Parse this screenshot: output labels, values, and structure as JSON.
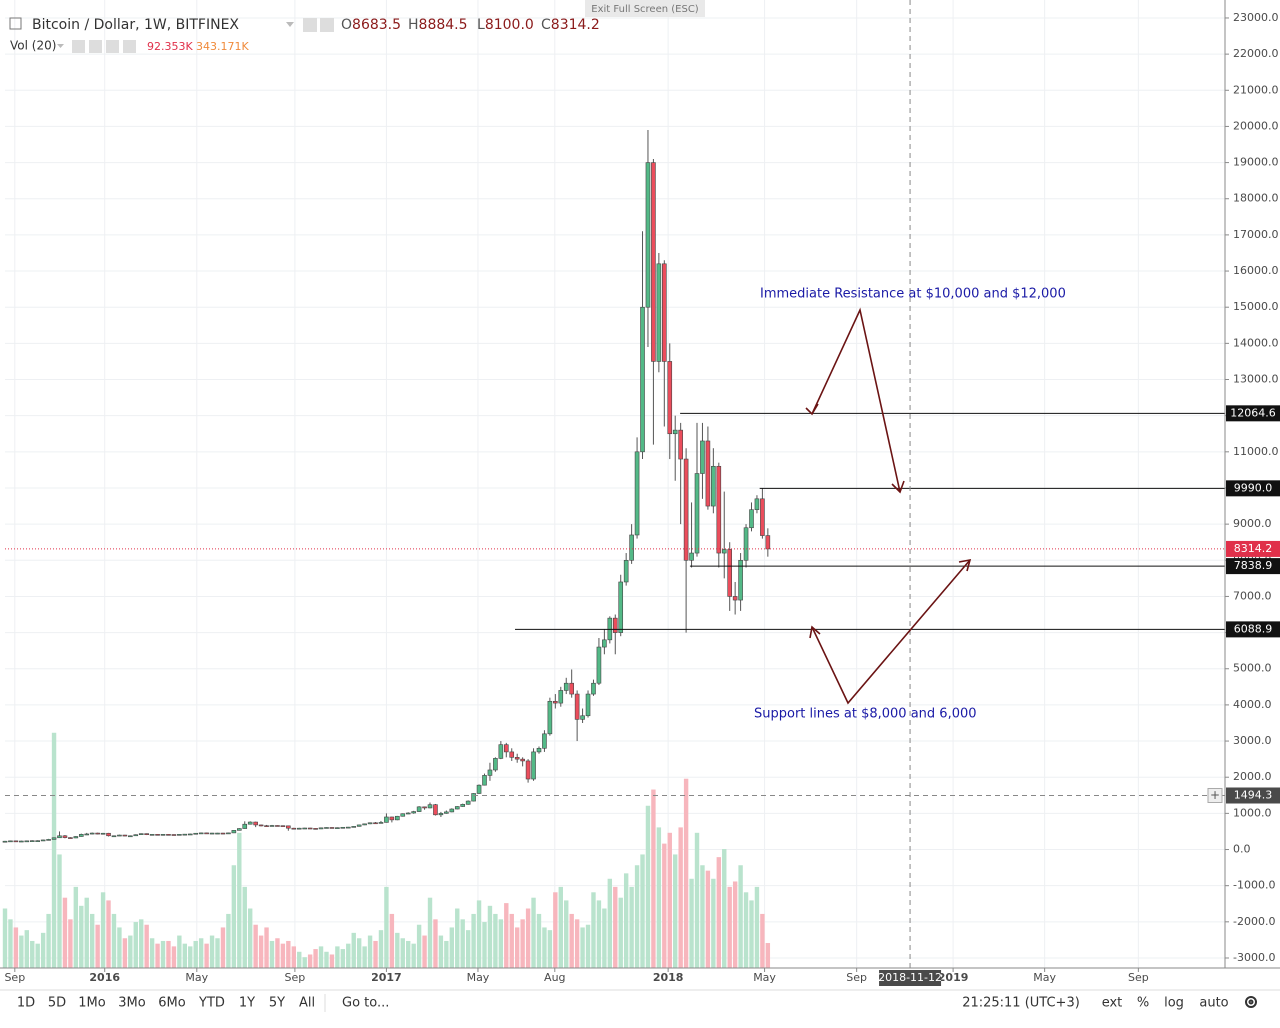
{
  "header": {
    "symbol": "Bitcoin / Dollar, 1W, BITFINEX",
    "ohlc": [
      {
        "letter": "O",
        "label": "8683.5"
      },
      {
        "letter": "H",
        "label": "8884.5"
      },
      {
        "letter": "L",
        "label": "8100.0"
      },
      {
        "letter": "C",
        "label": "8314.2"
      }
    ],
    "volume_indicator": "Vol (20)",
    "volume_ma_label": "343.171K",
    "exit_fullscreen": "Exit Full Screen (ESC)"
  },
  "chart_data": {
    "type": "candlestick",
    "open": [
      225,
      230,
      240,
      230,
      235,
      240,
      245,
      245,
      265,
      280,
      325,
      380,
      330,
      320,
      360,
      420,
      430,
      455,
      430,
      450,
      380,
      380,
      400,
      375,
      380,
      410,
      440,
      410,
      420,
      415,
      420,
      415,
      410,
      420,
      425,
      430,
      450,
      460,
      445,
      455,
      455,
      450,
      460,
      530,
      580,
      700,
      760,
      680,
      660,
      650,
      665,
      660,
      655,
      590,
      575,
      590,
      595,
      585,
      570,
      600,
      610,
      605,
      605,
      615,
      620,
      640,
      680,
      710,
      740,
      730,
      750,
      900,
      820,
      920,
      990,
      1010,
      1050,
      1180,
      1150,
      1240,
      960,
      1000,
      1040,
      1120,
      1190,
      1250,
      1340,
      1550,
      1780,
      2050,
      2200,
      2520,
      2900,
      2700,
      2550,
      2500,
      2450,
      1950,
      2700,
      2800,
      3200,
      4100,
      4050,
      4400,
      4600,
      4300,
      3600,
      3700,
      4300,
      4600,
      5600,
      5800,
      6400,
      6000,
      7400,
      8000,
      8700,
      11000,
      15000,
      19000,
      13500,
      16200,
      13500,
      11500,
      11600,
      10800,
      8000,
      8200,
      10400,
      11300,
      9500,
      10600,
      8200,
      8300,
      7000,
      6900,
      8000,
      8900,
      9400,
      9700,
      8683.5
    ],
    "high": [
      240,
      250,
      245,
      245,
      250,
      255,
      255,
      275,
      295,
      335,
      500,
      400,
      340,
      370,
      440,
      460,
      470,
      465,
      460,
      460,
      390,
      410,
      405,
      390,
      420,
      445,
      445,
      425,
      425,
      425,
      425,
      420,
      425,
      430,
      440,
      455,
      470,
      465,
      460,
      460,
      460,
      465,
      540,
      590,
      780,
      780,
      770,
      690,
      680,
      680,
      670,
      665,
      660,
      600,
      600,
      600,
      600,
      590,
      610,
      615,
      615,
      612,
      620,
      625,
      645,
      690,
      720,
      750,
      760,
      790,
      1000,
      910,
      930,
      1000,
      1030,
      1070,
      1200,
      1190,
      1300,
      1260,
      1040,
      1080,
      1140,
      1200,
      1270,
      1360,
      1560,
      1800,
      2100,
      2400,
      2550,
      3000,
      2950,
      2800,
      2650,
      2550,
      2500,
      2800,
      2850,
      3300,
      4200,
      4300,
      4500,
      4750,
      4980,
      4400,
      3900,
      4400,
      4700,
      5850,
      6100,
      6450,
      6500,
      7600,
      8200,
      9000,
      11400,
      17100,
      19900,
      19100,
      16500,
      16300,
      14000,
      12000,
      11800,
      11100,
      9600,
      11800,
      11800,
      11700,
      11100,
      10700,
      9900,
      8500,
      7400,
      8200,
      9000,
      9600,
      9800,
      9990,
      8884.5
    ],
    "low": [
      220,
      225,
      225,
      225,
      230,
      235,
      235,
      240,
      260,
      275,
      320,
      310,
      310,
      315,
      355,
      400,
      420,
      420,
      420,
      360,
      370,
      375,
      370,
      370,
      375,
      405,
      400,
      405,
      410,
      410,
      410,
      405,
      405,
      415,
      420,
      425,
      445,
      440,
      440,
      450,
      440,
      445,
      455,
      525,
      575,
      690,
      620,
      640,
      630,
      640,
      650,
      640,
      520,
      560,
      570,
      580,
      575,
      560,
      565,
      595,
      600,
      600,
      600,
      610,
      615,
      635,
      675,
      700,
      720,
      725,
      745,
      750,
      810,
      910,
      980,
      990,
      1040,
      1100,
      1140,
      940,
      900,
      990,
      1030,
      1110,
      1180,
      1240,
      1330,
      1540,
      1770,
      1900,
      2150,
      2500,
      2550,
      2450,
      2400,
      2300,
      1850,
      1900,
      2650,
      2700,
      3150,
      3900,
      3950,
      4300,
      4200,
      3000,
      3500,
      3650,
      4250,
      4550,
      5400,
      5700,
      5400,
      5900,
      7300,
      7900,
      8600,
      10800,
      13900,
      11200,
      13200,
      11700,
      10800,
      10200,
      9000,
      6000,
      7800,
      8100,
      9700,
      9400,
      9300,
      7800,
      7500,
      6600,
      6500,
      6600,
      7800,
      8800,
      9300,
      8600,
      8100
    ],
    "close": [
      230,
      240,
      230,
      235,
      240,
      245,
      245,
      265,
      280,
      325,
      380,
      330,
      320,
      360,
      420,
      430,
      455,
      430,
      450,
      380,
      380,
      400,
      375,
      380,
      410,
      440,
      410,
      420,
      415,
      420,
      415,
      410,
      420,
      425,
      430,
      450,
      460,
      445,
      455,
      455,
      450,
      460,
      530,
      580,
      700,
      760,
      680,
      660,
      650,
      665,
      660,
      655,
      590,
      575,
      590,
      595,
      585,
      570,
      600,
      610,
      605,
      605,
      615,
      620,
      640,
      680,
      710,
      740,
      730,
      750,
      900,
      820,
      920,
      990,
      1010,
      1050,
      1180,
      1150,
      1240,
      960,
      1000,
      1040,
      1120,
      1190,
      1250,
      1340,
      1550,
      1780,
      2050,
      2200,
      2520,
      2900,
      2700,
      2550,
      2500,
      2450,
      1950,
      2700,
      2800,
      3200,
      4100,
      4050,
      4400,
      4600,
      4300,
      3600,
      3700,
      4300,
      4600,
      5600,
      5800,
      6400,
      6000,
      7400,
      8000,
      8700,
      11000,
      15000,
      19000,
      13500,
      16200,
      13500,
      11500,
      11600,
      10800,
      8000,
      8200,
      10400,
      11300,
      9500,
      10600,
      8200,
      8300,
      7000,
      6900,
      8000,
      8900,
      9400,
      9700,
      8683.5,
      8314.2
    ],
    "up_color": "#53b987",
    "down_color": "#eb4d5c",
    "volume": {
      "name": "Vol",
      "axis": "y2",
      "last_label": "92.353K",
      "up_color": "#b9e3cd",
      "down_color": "#f7b6bd",
      "values": [
        220,
        180,
        150,
        120,
        140,
        100,
        90,
        130,
        200,
        870,
        420,
        260,
        180,
        300,
        230,
        260,
        200,
        160,
        280,
        250,
        200,
        150,
        110,
        120,
        170,
        180,
        160,
        110,
        90,
        100,
        100,
        80,
        120,
        90,
        80,
        100,
        110,
        90,
        120,
        110,
        150,
        200,
        380,
        500,
        300,
        220,
        160,
        120,
        150,
        100,
        110,
        90,
        100,
        80,
        60,
        40,
        50,
        70,
        80,
        60,
        50,
        80,
        70,
        90,
        130,
        110,
        80,
        120,
        100,
        140,
        300,
        200,
        130,
        110,
        100,
        90,
        160,
        120,
        260,
        180,
        120,
        100,
        150,
        220,
        180,
        140,
        200,
        250,
        170,
        230,
        200,
        180,
        240,
        200,
        150,
        180,
        220,
        260,
        200,
        150,
        140,
        280,
        300,
        250,
        200,
        180,
        150,
        160,
        280,
        250,
        220,
        330,
        300,
        260,
        350,
        300,
        380,
        420,
        600,
        660,
        520,
        460,
        500,
        420,
        520,
        700,
        330,
        500,
        380,
        360,
        330,
        410,
        440,
        300,
        320,
        380,
        280,
        250,
        300,
        200,
        92.353
      ]
    },
    "y2lim": [
      0,
      3580
    ],
    "xlim": [
      0,
      223.9
    ],
    "xticks": [
      {
        "value": 1.8,
        "label": "Sep"
      },
      {
        "value": 18.3,
        "label": "2016"
      },
      {
        "value": 35.2,
        "label": "May"
      },
      {
        "value": 53.2,
        "label": "Sep"
      },
      {
        "value": 70,
        "label": "2017"
      },
      {
        "value": 86.8,
        "label": "May"
      },
      {
        "value": 100.9,
        "label": "Aug"
      },
      {
        "value": 121.7,
        "label": "2018"
      },
      {
        "value": 139.4,
        "label": "May"
      },
      {
        "value": 156.3,
        "label": "Sep"
      },
      {
        "value": 174,
        "label": "2019"
      },
      {
        "value": 190.8,
        "label": "May"
      },
      {
        "value": 208,
        "label": "Sep"
      }
    ],
    "ylim": [
      -3277,
      23497
    ],
    "yticks": [
      {
        "value": 23000,
        "label": "23000.0"
      },
      {
        "value": 22000,
        "label": "22000.0"
      },
      {
        "value": 21000,
        "label": "21000.0"
      },
      {
        "value": 20000,
        "label": "20000.0"
      },
      {
        "value": 19000,
        "label": "19000.0"
      },
      {
        "value": 18000,
        "label": "18000.0"
      },
      {
        "value": 17000,
        "label": "17000.0"
      },
      {
        "value": 16000,
        "label": "16000.0"
      },
      {
        "value": 15000,
        "label": "15000.0"
      },
      {
        "value": 14000,
        "label": "14000.0"
      },
      {
        "value": 13000,
        "label": "13000.0"
      },
      {
        "value": 12000,
        "label": "12000.0"
      },
      {
        "value": 11000,
        "label": "11000.0"
      },
      {
        "value": 10000,
        "label": "10000.0"
      },
      {
        "value": 9000,
        "label": "9000.0"
      },
      {
        "value": 8000,
        "label": "8000.0"
      },
      {
        "value": 7000,
        "label": "7000.0"
      },
      {
        "value": 6000,
        "label": "6000.0"
      },
      {
        "value": 5000,
        "label": "5000.0"
      },
      {
        "value": 4000,
        "label": "4000.0"
      },
      {
        "value": 3000,
        "label": "3000.0"
      },
      {
        "value": 2000,
        "label": "2000.0"
      },
      {
        "value": 1000,
        "label": "1000.0"
      },
      {
        "value": 0,
        "label": "0.0"
      },
      {
        "value": -1000,
        "label": "-1000.0"
      },
      {
        "value": -2000,
        "label": "-2000.0"
      },
      {
        "value": -3000,
        "label": "-3000.0"
      }
    ],
    "grid": true,
    "levels": [
      {
        "value": 12064.6,
        "x_start": 123.9
      },
      {
        "value": 9990,
        "label": "9990.0",
        "x_start": 138.5
      },
      {
        "value": 7838.9,
        "x_start": 125.7
      },
      {
        "value": 6088.9,
        "x_start": 93.6
      }
    ],
    "crosshair": {
      "value": 1494.3,
      "x": 166.1,
      "x_label": "2018-11-12"
    },
    "annotations": [
      "Immediate Resistance at $10,000 and $12,000",
      "Support lines at $8,000 and 6,000"
    ]
  },
  "toolbar": {
    "ranges": [
      "1D",
      "5D",
      "1Mo",
      "3Mo",
      "6Mo",
      "YTD",
      "1Y",
      "5Y",
      "All"
    ],
    "goto": "Go to...",
    "clock": "21:25:11 (UTC+3)",
    "options": [
      "ext",
      "%",
      "log",
      "auto"
    ]
  }
}
